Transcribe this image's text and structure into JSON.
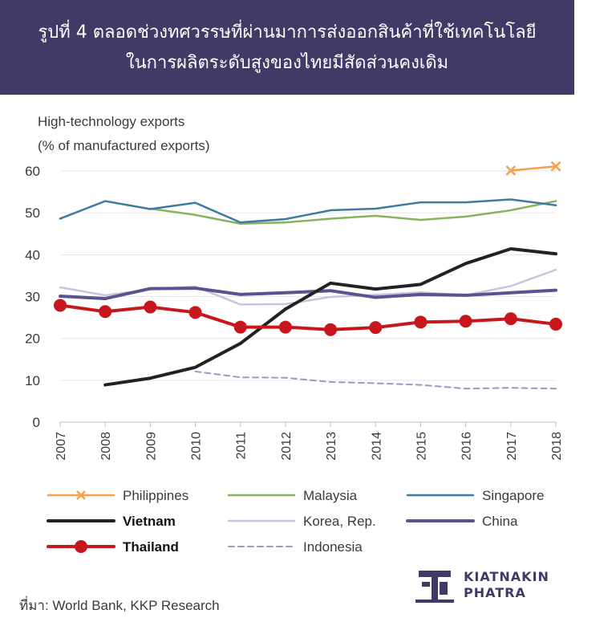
{
  "header": {
    "title_line1": "รูปที่ 4 ตลอดช่วงทศวรรษที่ผ่านมาการส่งออกสินค้าที่ใช้เทคโนโลยี",
    "title_line2": "ในการผลิตระดับสูงของไทยมีสัดส่วนคงเดิม"
  },
  "chart_data": {
    "type": "line",
    "ylabel_line1": "High-technology exports",
    "ylabel_line2": "(% of manufactured exports)",
    "xlabel": "",
    "x": [
      "2007",
      "2008",
      "2009",
      "2010",
      "2011",
      "2012",
      "2013",
      "2014",
      "2015",
      "2016",
      "2017",
      "2018"
    ],
    "ylim": [
      0,
      60
    ],
    "yticks": [
      0,
      10,
      20,
      30,
      40,
      50,
      60
    ],
    "grid": true,
    "legend_position": "bottom",
    "series": [
      {
        "name": "Philippines",
        "color": "#f7a04a",
        "width": 2.5,
        "marker": "x",
        "bold": false,
        "dashed": false,
        "values": [
          null,
          null,
          null,
          null,
          null,
          null,
          null,
          null,
          null,
          null,
          60.1,
          61.1
        ]
      },
      {
        "name": "Malaysia",
        "color": "#86b45e",
        "width": 2.5,
        "marker": "none",
        "bold": false,
        "dashed": false,
        "values": [
          null,
          null,
          51.0,
          49.5,
          47.4,
          47.7,
          48.6,
          49.3,
          48.3,
          49.1,
          50.6,
          52.8
        ]
      },
      {
        "name": "Singapore",
        "color": "#3f7aa0",
        "width": 2.5,
        "marker": "none",
        "bold": false,
        "dashed": false,
        "values": [
          48.6,
          52.8,
          50.9,
          52.4,
          47.7,
          48.5,
          50.6,
          51.0,
          52.5,
          52.5,
          53.2,
          51.8
        ]
      },
      {
        "name": "Vietnam",
        "color": "#222222",
        "width": 4,
        "marker": "none",
        "bold": true,
        "dashed": false,
        "values": [
          null,
          8.9,
          10.5,
          13.1,
          18.8,
          27.0,
          33.2,
          31.8,
          32.9,
          37.9,
          41.4,
          40.2
        ]
      },
      {
        "name": "Korea, Rep.",
        "color": "#c9c3dc",
        "width": 2.5,
        "marker": "none",
        "bold": false,
        "dashed": false,
        "values": [
          32.2,
          30.3,
          31.7,
          32.4,
          28.1,
          28.2,
          29.9,
          30.4,
          31.0,
          30.3,
          32.5,
          36.4
        ]
      },
      {
        "name": "China",
        "color": "#5b5390",
        "width": 4,
        "marker": "none",
        "bold": false,
        "dashed": false,
        "values": [
          30.1,
          29.5,
          31.9,
          32.0,
          30.5,
          30.9,
          31.4,
          29.8,
          30.5,
          30.3,
          30.9,
          31.5
        ]
      },
      {
        "name": "Thailand",
        "color": "#c8161d",
        "width": 4,
        "marker": "circle",
        "bold": true,
        "dashed": false,
        "values": [
          27.9,
          26.4,
          27.5,
          26.2,
          22.7,
          22.7,
          22.1,
          22.6,
          23.9,
          24.1,
          24.7,
          23.4
        ]
      },
      {
        "name": "Indonesia",
        "color": "#9f98c6",
        "width": 2,
        "marker": "none",
        "bold": false,
        "dashed": true,
        "values": [
          null,
          null,
          null,
          12.1,
          10.7,
          10.6,
          9.6,
          9.3,
          8.9,
          8.0,
          8.2,
          8.0
        ]
      }
    ]
  },
  "footer": {
    "source": "ที่มา: World Bank, KKP Research"
  },
  "logo": {
    "line1": "KIATNAKIN",
    "line2": "PHATRA",
    "color": "#3f3a66"
  }
}
